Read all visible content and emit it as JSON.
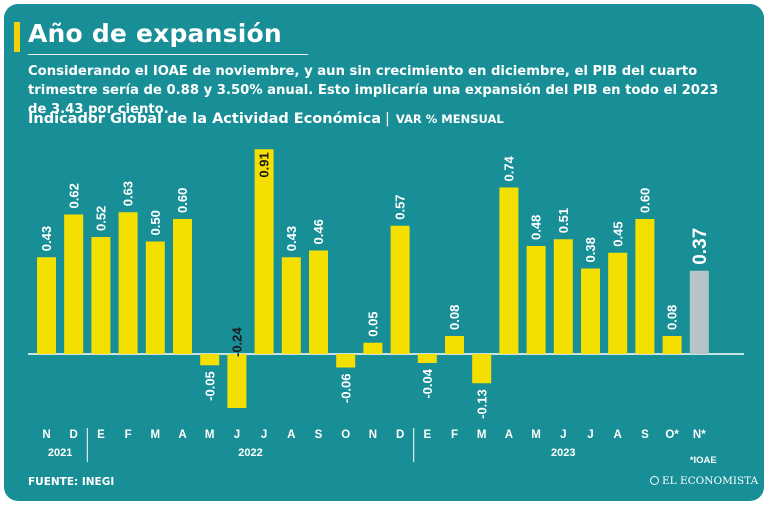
{
  "header": {
    "title": "Año de expansión",
    "subtitle": "Considerando el IOAE de noviembre, y aun sin crecimiento en diciembre, el PIB del cuarto trimestre sería de 0.88 y 3.50% anual. Esto implicaría una expansión del PIB en todo el 2023 de 3.43 por ciento."
  },
  "footer": {
    "source": "FUENTE: INEGI",
    "logo_text": "EL ECONOMISTA"
  },
  "chart_data": {
    "type": "bar",
    "title": "Indicador Global de la Actividad Económica",
    "ylabel": "VAR % MENSUAL",
    "categories": [
      "N",
      "D",
      "E",
      "F",
      "M",
      "A",
      "M",
      "J",
      "J",
      "A",
      "S",
      "O",
      "N",
      "D",
      "E",
      "F",
      "M",
      "A",
      "M",
      "J",
      "J",
      "A",
      "S",
      "O*",
      "N*"
    ],
    "values": [
      0.43,
      0.62,
      0.52,
      0.63,
      0.5,
      0.6,
      -0.05,
      -0.24,
      0.91,
      0.43,
      0.46,
      -0.06,
      0.05,
      0.57,
      -0.04,
      0.08,
      -0.13,
      0.74,
      0.48,
      0.51,
      0.38,
      0.45,
      0.6,
      0.08,
      0.37
    ],
    "labels": [
      "0.43",
      "0.62",
      "0.52",
      "0.63",
      "0.50",
      "0.60",
      "-0.05",
      "-0.24",
      "0.91",
      "0.43",
      "0.46",
      "-0.06",
      "0.05",
      "0.57",
      "-0.04",
      "0.08",
      "-0.13",
      "0.74",
      "0.48",
      "0.51",
      "0.38",
      "0.45",
      "0.60",
      "0.08",
      "0.37"
    ],
    "years": [
      {
        "label": "2021",
        "start": 0,
        "end": 1
      },
      {
        "label": "2022",
        "start": 2,
        "end": 13
      },
      {
        "label": "2023",
        "start": 14,
        "end": 24
      }
    ],
    "highlight_index": 24,
    "note": "*IOAE",
    "colors": {
      "bar": "#f4e000",
      "highlight_bar": "#b7c4c5",
      "background": "#188f97",
      "text": "#ffffff",
      "label_on_bar": "#1a1a1a"
    }
  }
}
